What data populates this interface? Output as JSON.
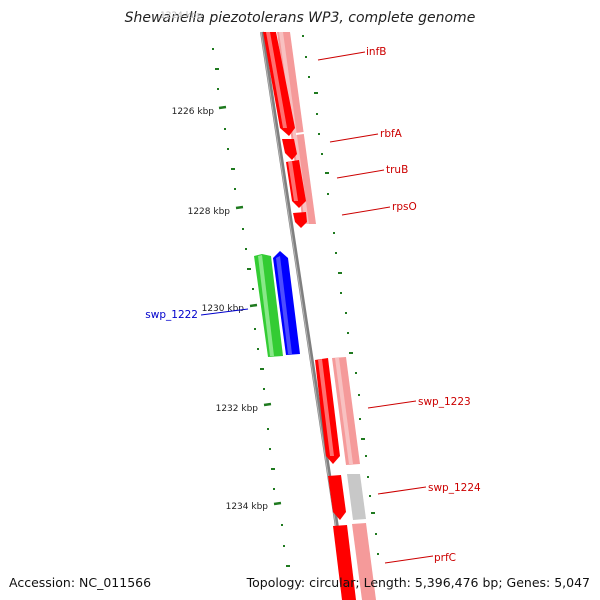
{
  "title": "Shewanella piezotolerans WP3, complete genome",
  "footer": {
    "accession": "Accession: NC_011566",
    "summary": "Topology: circular; Length: 5,396,476 bp; Genes: 5,047"
  },
  "colors": {
    "backbone": "#7f7f7f",
    "forward_strand": "#ff0000",
    "forward_strand_light": "#f59a9a",
    "reverse_strand_green": "#33cc33",
    "reverse_strand_blue": "#0000ff",
    "unknown_gene": "#c8c8c8",
    "tick": "#1f7a1f",
    "label_red": "#cc0000",
    "label_blue": "#0000cc"
  },
  "ticks": {
    "labels": [
      "1226 kbp",
      "1228 kbp",
      "1230 kbp",
      "1232 kbp",
      "1234 kbp"
    ]
  },
  "genes": [
    {
      "label": "infB",
      "color": "label_red"
    },
    {
      "label": "rbfA",
      "color": "label_red"
    },
    {
      "label": "truB",
      "color": "label_red"
    },
    {
      "label": "rpsO",
      "color": "label_red"
    },
    {
      "label": "swp_1222",
      "color": "label_blue"
    },
    {
      "label": "swp_1223",
      "color": "label_red"
    },
    {
      "label": "swp_1224",
      "color": "label_red"
    },
    {
      "label": "prfC",
      "color": "label_red"
    }
  ]
}
